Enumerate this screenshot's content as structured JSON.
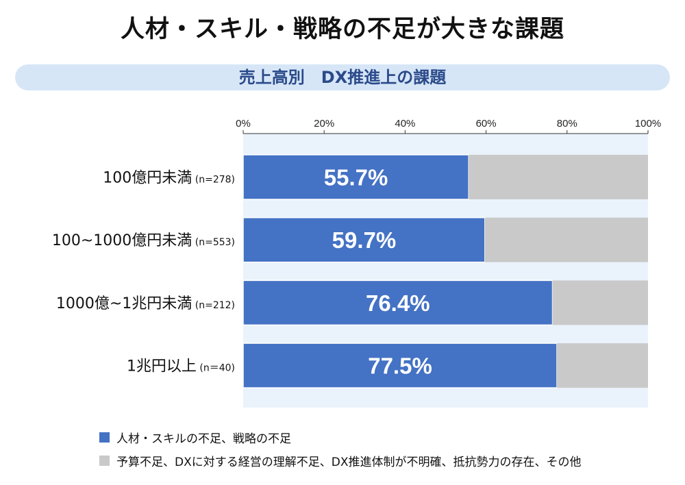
{
  "title": "人材・スキル・戦略の不足が大きな課題",
  "subtitle": "売上高別　DX推進上の課題",
  "chart_data": {
    "type": "bar",
    "orientation": "horizontal",
    "stacked": true,
    "categories": [
      {
        "label": "100億円未満",
        "n": "(n=278)"
      },
      {
        "label": "100~1000億円未満",
        "n": "(n=553)"
      },
      {
        "label": "1000億~1兆円未満",
        "n": "(n=212)"
      },
      {
        "label": "1兆円以上",
        "n": "(n＝40)"
      }
    ],
    "series": [
      {
        "name": "人材・スキルの不足、戦略の不足",
        "color": "#4472c4",
        "values": [
          55.7,
          59.7,
          76.4,
          77.5
        ],
        "data_labels": [
          "55.7%",
          "59.7%",
          "76.4%",
          "77.5%"
        ]
      },
      {
        "name": "予算不足、DXに対する経営の理解不足、DX推進体制が不明確、抵抗勢力の存在、その他",
        "color": "#c9c9c9",
        "values": [
          44.3,
          40.3,
          23.6,
          22.5
        ]
      }
    ],
    "xlim": [
      0,
      100
    ],
    "xticks": [
      "0%",
      "20%",
      "40%",
      "60%",
      "80%",
      "100%"
    ],
    "xaxis_position": "top",
    "plot_background": "#eaf3fc",
    "legend_position": "bottom"
  }
}
